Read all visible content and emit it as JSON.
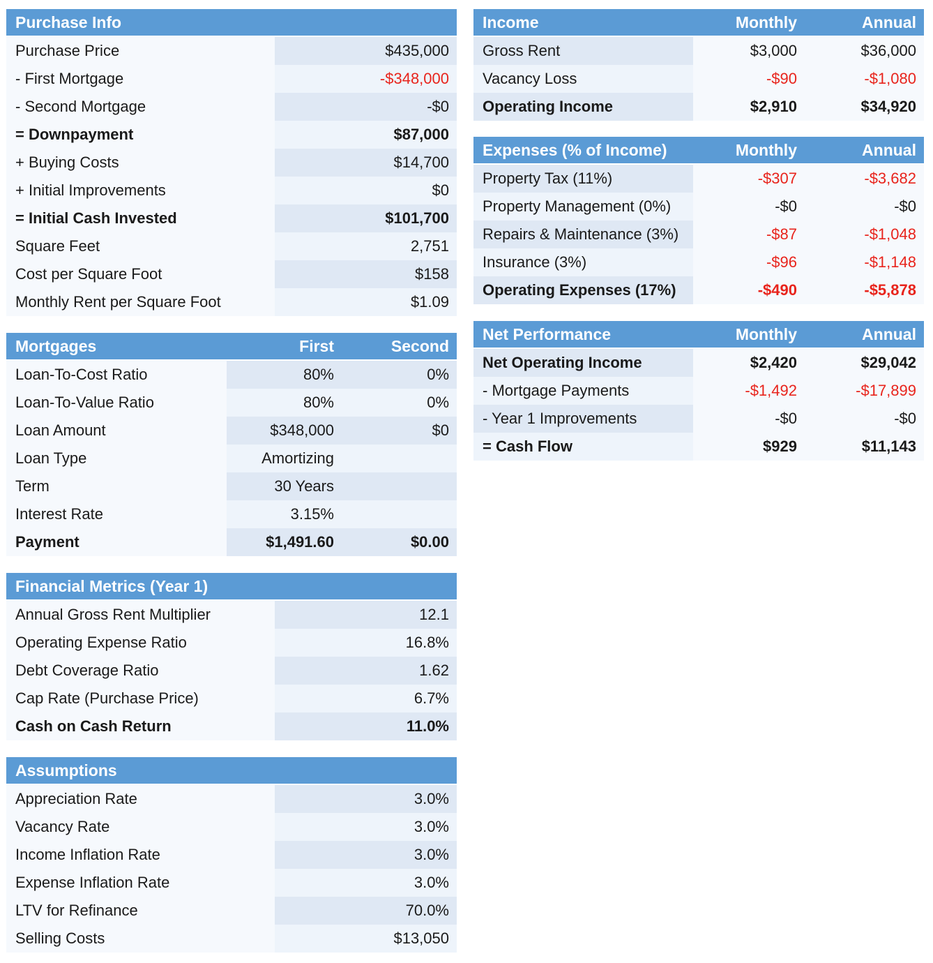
{
  "purchase_info": {
    "title": "Purchase Info",
    "rows": [
      {
        "label": "Purchase Price",
        "value": "$435,000",
        "bold": false,
        "red": false
      },
      {
        "label": "- First Mortgage",
        "value": "-$348,000",
        "bold": false,
        "red": true
      },
      {
        "label": "- Second Mortgage",
        "value": "-$0",
        "bold": false,
        "red": false
      },
      {
        "label": "= Downpayment",
        "value": "$87,000",
        "bold": true,
        "red": false
      },
      {
        "label": "+ Buying Costs",
        "value": "$14,700",
        "bold": false,
        "red": false
      },
      {
        "label": "+ Initial Improvements",
        "value": "$0",
        "bold": false,
        "red": false
      },
      {
        "label": "= Initial Cash Invested",
        "value": "$101,700",
        "bold": true,
        "red": false
      },
      {
        "label": "Square Feet",
        "value": "2,751",
        "bold": false,
        "red": false
      },
      {
        "label": "Cost per Square Foot",
        "value": "$158",
        "bold": false,
        "red": false
      },
      {
        "label": "Monthly Rent per Square Foot",
        "value": "$1.09",
        "bold": false,
        "red": false
      }
    ]
  },
  "mortgages": {
    "title": "Mortgages",
    "col_first": "First",
    "col_second": "Second",
    "rows": [
      {
        "label": "Loan-To-Cost Ratio",
        "first": "80%",
        "second": "0%",
        "bold": false
      },
      {
        "label": "Loan-To-Value Ratio",
        "first": "80%",
        "second": "0%",
        "bold": false
      },
      {
        "label": "Loan Amount",
        "first": "$348,000",
        "second": "$0",
        "bold": false
      },
      {
        "label": "Loan Type",
        "first": "Amortizing",
        "second": "",
        "bold": false
      },
      {
        "label": "Term",
        "first": "30 Years",
        "second": "",
        "bold": false
      },
      {
        "label": "Interest Rate",
        "first": "3.15%",
        "second": "",
        "bold": false
      },
      {
        "label": "Payment",
        "first": "$1,491.60",
        "second": "$0.00",
        "bold": true
      }
    ]
  },
  "financial_metrics": {
    "title": "Financial Metrics (Year 1)",
    "rows": [
      {
        "label": "Annual Gross Rent Multiplier",
        "value": "12.1",
        "bold": false
      },
      {
        "label": "Operating Expense Ratio",
        "value": "16.8%",
        "bold": false
      },
      {
        "label": "Debt Coverage Ratio",
        "value": "1.62",
        "bold": false
      },
      {
        "label": "Cap Rate (Purchase Price)",
        "value": "6.7%",
        "bold": false
      },
      {
        "label": "Cash on Cash Return",
        "value": "11.0%",
        "bold": true
      }
    ]
  },
  "assumptions": {
    "title": "Assumptions",
    "rows": [
      {
        "label": "Appreciation Rate",
        "value": "3.0%"
      },
      {
        "label": "Vacancy Rate",
        "value": "3.0%"
      },
      {
        "label": "Income Inflation Rate",
        "value": "3.0%"
      },
      {
        "label": "Expense Inflation Rate",
        "value": "3.0%"
      },
      {
        "label": "LTV for Refinance",
        "value": "70.0%"
      },
      {
        "label": "Selling Costs",
        "value": "$13,050"
      }
    ]
  },
  "income": {
    "title": "Income",
    "col_monthly": "Monthly",
    "col_annual": "Annual",
    "rows": [
      {
        "label": "Gross Rent",
        "monthly": "$3,000",
        "annual": "$36,000",
        "bold": false,
        "red": false
      },
      {
        "label": "Vacancy Loss",
        "monthly": "-$90",
        "annual": "-$1,080",
        "bold": false,
        "red": true
      },
      {
        "label": "Operating Income",
        "monthly": "$2,910",
        "annual": "$34,920",
        "bold": true,
        "red": false
      }
    ]
  },
  "expenses": {
    "title": "Expenses (% of Income)",
    "col_monthly": "Monthly",
    "col_annual": "Annual",
    "rows": [
      {
        "label": "Property Tax (11%)",
        "monthly": "-$307",
        "annual": "-$3,682",
        "bold": false,
        "red": true
      },
      {
        "label": "Property Management (0%)",
        "monthly": "-$0",
        "annual": "-$0",
        "bold": false,
        "red": false
      },
      {
        "label": "Repairs & Maintenance (3%)",
        "monthly": "-$87",
        "annual": "-$1,048",
        "bold": false,
        "red": true
      },
      {
        "label": "Insurance (3%)",
        "monthly": "-$96",
        "annual": "-$1,148",
        "bold": false,
        "red": true
      },
      {
        "label": "Operating Expenses (17%)",
        "monthly": "-$490",
        "annual": "-$5,878",
        "bold": true,
        "red": true
      }
    ]
  },
  "net_performance": {
    "title": "Net Performance",
    "col_monthly": "Monthly",
    "col_annual": "Annual",
    "rows": [
      {
        "label": "Net Operating Income",
        "monthly": "$2,420",
        "annual": "$29,042",
        "bold": true,
        "red": false
      },
      {
        "label": "- Mortgage Payments",
        "monthly": "-$1,492",
        "annual": "-$17,899",
        "bold": false,
        "red": true
      },
      {
        "label": "- Year 1 Improvements",
        "monthly": "-$0",
        "annual": "-$0",
        "bold": false,
        "red": false
      },
      {
        "label": "= Cash Flow",
        "monthly": "$929",
        "annual": "$11,143",
        "bold": true,
        "red": false
      }
    ]
  },
  "colors": {
    "header_bg": "#5b9bd5",
    "header_text": "#ffffff",
    "negative": "#e8241c",
    "row_label_bg": "#f6f9fd",
    "row_value_bg_even": "#dfe8f4",
    "row_value_bg_odd": "#eef4fb"
  }
}
